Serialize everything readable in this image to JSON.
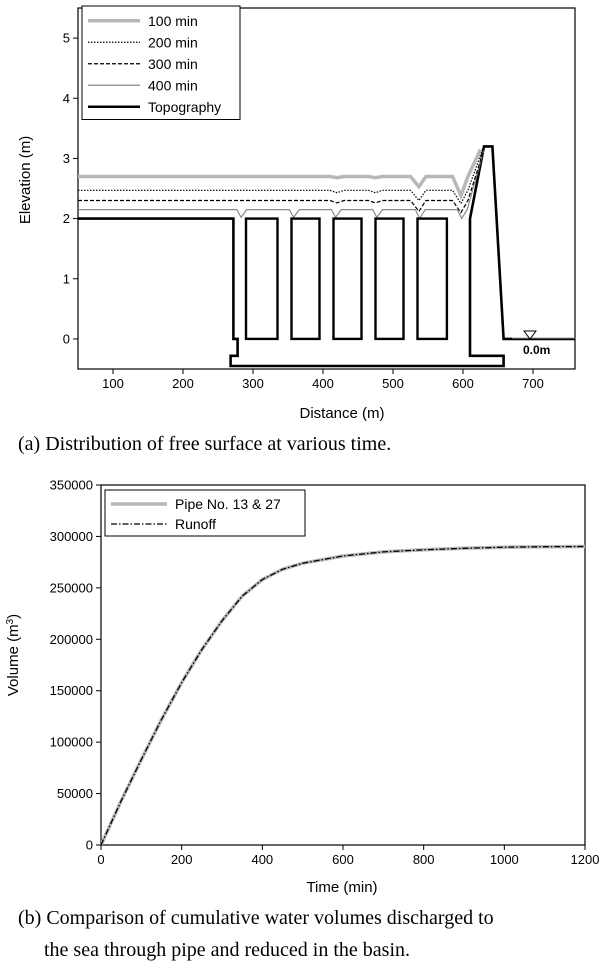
{
  "chart_data": [
    {
      "type": "line",
      "xlabel": "Distance (m)",
      "ylabel": "Elevation (m)",
      "xlim": [
        50,
        760
      ],
      "ylim": [
        -0.5,
        5.5
      ],
      "xticks": [
        100,
        200,
        300,
        400,
        500,
        600,
        700
      ],
      "yticks": [
        0,
        1,
        2,
        3,
        4,
        5
      ],
      "legend_position": "top-left",
      "annotation": "0.0m",
      "series": [
        {
          "name": "100 min",
          "color": "#b8b8b8",
          "style": "thick",
          "x": [
            50,
            410,
            420,
            430,
            465,
            475,
            485,
            525,
            537,
            547,
            585,
            597,
            607,
            625
          ],
          "y": [
            2.7,
            2.7,
            2.68,
            2.7,
            2.7,
            2.68,
            2.7,
            2.7,
            2.53,
            2.7,
            2.7,
            2.38,
            2.7,
            3.15
          ]
        },
        {
          "name": "200 min",
          "color": "#000000",
          "style": "dotted",
          "x": [
            50,
            410,
            420,
            430,
            465,
            475,
            485,
            525,
            537,
            547,
            585,
            597,
            607,
            628
          ],
          "y": [
            2.47,
            2.47,
            2.43,
            2.47,
            2.47,
            2.43,
            2.47,
            2.47,
            2.3,
            2.47,
            2.47,
            2.25,
            2.47,
            3.15
          ]
        },
        {
          "name": "300 min",
          "color": "#000000",
          "style": "dashed",
          "x": [
            50,
            410,
            420,
            430,
            465,
            475,
            485,
            525,
            537,
            547,
            585,
            597,
            607,
            630
          ],
          "y": [
            2.3,
            2.3,
            2.26,
            2.3,
            2.3,
            2.26,
            2.3,
            2.3,
            2.12,
            2.3,
            2.3,
            2.1,
            2.3,
            3.15
          ]
        },
        {
          "name": "400 min",
          "color": "#8a8a8a",
          "style": "thin",
          "x": [
            50,
            277,
            283,
            291,
            352,
            358,
            366,
            412,
            418,
            426,
            471,
            477,
            485,
            532,
            538,
            546,
            592,
            598,
            606,
            630
          ],
          "y": [
            2.15,
            2.15,
            2.02,
            2.15,
            2.15,
            2.02,
            2.15,
            2.15,
            2.02,
            2.15,
            2.15,
            2.02,
            2.15,
            2.15,
            2.0,
            2.15,
            2.15,
            2.0,
            2.15,
            3.15
          ]
        },
        {
          "name": "Topography",
          "color": "#000000",
          "style": "bold",
          "x": [
            50,
            272,
            272,
            278,
            278,
            268,
            268,
            658,
            658,
            610,
            610,
            630,
            642,
            658,
            760
          ],
          "y": [
            2.0,
            2.0,
            0.0,
            0.0,
            -0.28,
            -0.28,
            -0.45,
            -0.45,
            -0.28,
            -0.28,
            2.0,
            3.2,
            3.2,
            0.0,
            0.0
          ]
        }
      ],
      "topography_pillars_x": [
        [
          290,
          335
        ],
        [
          355,
          395
        ],
        [
          415,
          455
        ],
        [
          475,
          515
        ],
        [
          535,
          577
        ]
      ]
    },
    {
      "type": "line",
      "xlabel": "Time (min)",
      "ylabel": "Volume (m3)",
      "xlim": [
        0,
        1200
      ],
      "ylim": [
        0,
        350000
      ],
      "xticks": [
        0,
        200,
        400,
        600,
        800,
        1000,
        1200
      ],
      "yticks": [
        0,
        50000,
        100000,
        150000,
        200000,
        250000,
        300000,
        350000
      ],
      "legend_position": "top-left",
      "series": [
        {
          "name": "Pipe No. 13 & 27",
          "color": "#b8b8b8",
          "style": "thick",
          "x": [
            0,
            50,
            100,
            150,
            200,
            250,
            300,
            350,
            400,
            450,
            500,
            600,
            700,
            800,
            900,
            1000,
            1100,
            1200
          ],
          "y": [
            0,
            43000,
            83000,
            122000,
            158000,
            190000,
            218000,
            242000,
            258000,
            268000,
            274000,
            281000,
            285000,
            287000,
            288500,
            289500,
            290000,
            290200
          ]
        },
        {
          "name": "Runoff",
          "color": "#000000",
          "style": "dashdot",
          "x": [
            0,
            50,
            100,
            150,
            200,
            250,
            300,
            350,
            400,
            450,
            500,
            600,
            700,
            800,
            900,
            1000,
            1100,
            1200
          ],
          "y": [
            0,
            43000,
            83000,
            122000,
            158000,
            190000,
            218000,
            242000,
            258000,
            268000,
            274000,
            281000,
            285000,
            287000,
            288500,
            289500,
            290000,
            290200
          ]
        }
      ]
    }
  ],
  "captions": {
    "a": "(a) Distribution of free surface at various time.",
    "b_line1": "(b) Comparison of cumulative water volumes discharged to",
    "b_line2": "the sea through pipe and reduced in the basin."
  }
}
